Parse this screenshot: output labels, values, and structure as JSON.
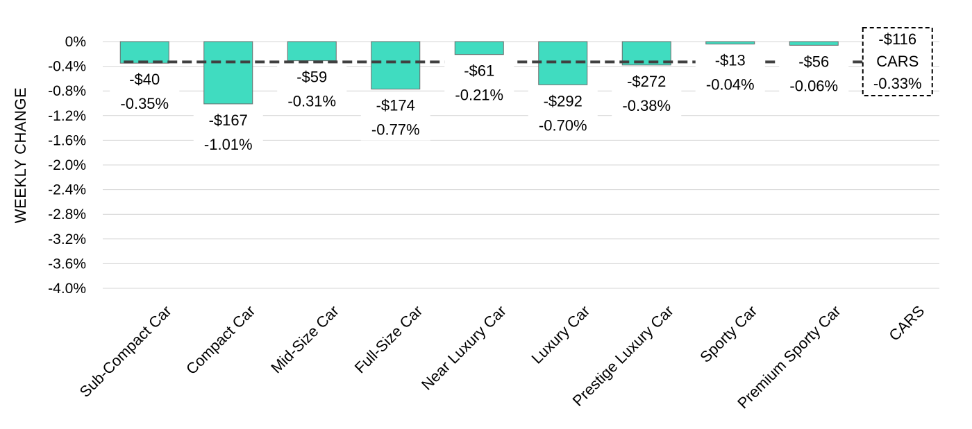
{
  "chart_data": {
    "type": "bar",
    "title": "",
    "xlabel": "",
    "ylabel": "WEEKLY CHANGE",
    "ylim": [
      -4.0,
      0
    ],
    "yticks": [
      "0%",
      "-0.4%",
      "-0.8%",
      "-1.2%",
      "-1.6%",
      "-2.0%",
      "-2.4%",
      "-2.8%",
      "-3.2%",
      "-3.6%",
      "-4.0%"
    ],
    "grid": true,
    "bar_color": "#40dcc0",
    "categories": [
      "Sub-Compact Car",
      "Compact Car",
      "Mid-Size Car",
      "Full-Size Car",
      "Near Luxury Car",
      "Luxury Car",
      "Prestige Luxury Car",
      "Sporty Car",
      "Premium Sporty Car",
      "CARS"
    ],
    "values": [
      -0.35,
      -1.01,
      -0.31,
      -0.77,
      -0.21,
      -0.7,
      -0.38,
      -0.04,
      -0.06,
      null
    ],
    "dollar_labels": [
      "-$40",
      "-$167",
      "-$59",
      "-$174",
      "-$61",
      "-$292",
      "-$272",
      "-$13",
      "-$56"
    ],
    "pct_labels": [
      "-0.35%",
      "-1.01%",
      "-0.31%",
      "-0.77%",
      "-0.21%",
      "-0.70%",
      "-0.38%",
      "-0.04%",
      "-0.06%"
    ],
    "average_line": {
      "value": -0.33,
      "style": "dashed",
      "box_labels": [
        "-$116",
        "CARS",
        "-0.33%"
      ]
    }
  }
}
